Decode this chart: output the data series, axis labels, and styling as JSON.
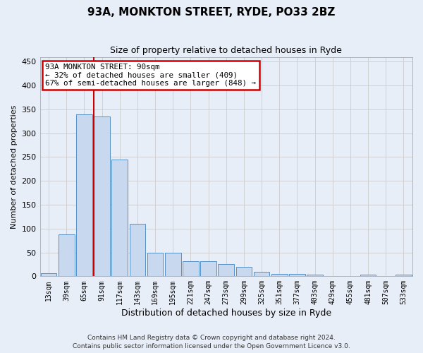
{
  "title": "93A, MONKTON STREET, RYDE, PO33 2BZ",
  "subtitle": "Size of property relative to detached houses in Ryde",
  "xlabel": "Distribution of detached houses by size in Ryde",
  "ylabel": "Number of detached properties",
  "bar_color": "#c8d8ee",
  "bar_edge_color": "#5590c8",
  "background_color": "#e8eef8",
  "grid_color": "#cccccc",
  "categories": [
    "13sqm",
    "39sqm",
    "65sqm",
    "91sqm",
    "117sqm",
    "143sqm",
    "169sqm",
    "195sqm",
    "221sqm",
    "247sqm",
    "273sqm",
    "299sqm",
    "325sqm",
    "351sqm",
    "377sqm",
    "403sqm",
    "429sqm",
    "455sqm",
    "481sqm",
    "507sqm",
    "533sqm"
  ],
  "values": [
    6,
    88,
    340,
    335,
    245,
    110,
    50,
    50,
    32,
    32,
    25,
    20,
    10,
    5,
    5,
    4,
    0,
    0,
    4,
    0,
    3
  ],
  "annotation_text": "93A MONKTON STREET: 90sqm\n← 32% of detached houses are smaller (409)\n67% of semi-detached houses are larger (848) →",
  "annotation_box_color": "#ffffff",
  "annotation_box_edge": "#cc0000",
  "vline_color": "#cc0000",
  "footer_line1": "Contains HM Land Registry data © Crown copyright and database right 2024.",
  "footer_line2": "Contains public sector information licensed under the Open Government Licence v3.0.",
  "ylim": [
    0,
    460
  ],
  "yticks": [
    0,
    50,
    100,
    150,
    200,
    250,
    300,
    350,
    400,
    450
  ]
}
